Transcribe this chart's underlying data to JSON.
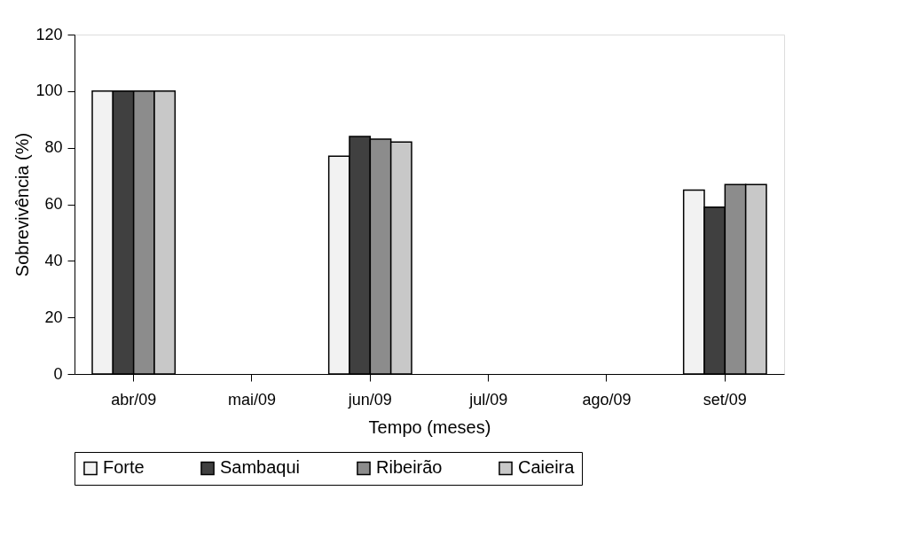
{
  "chart_data": {
    "type": "bar",
    "xlabel": "Tempo (meses)",
    "ylabel": "Sobrevivência (%)",
    "categories": [
      "abr/09",
      "mai/09",
      "jun/09",
      "jul/09",
      "ago/09",
      "set/09"
    ],
    "series": [
      {
        "name": "Forte",
        "color": "#f2f2f2",
        "values": [
          100,
          null,
          77,
          null,
          null,
          65
        ]
      },
      {
        "name": "Sambaqui",
        "color": "#404040",
        "values": [
          100,
          null,
          84,
          null,
          null,
          59
        ]
      },
      {
        "name": "Ribeirão",
        "color": "#8c8c8c",
        "values": [
          100,
          null,
          83,
          null,
          null,
          67
        ]
      },
      {
        "name": "Caieira",
        "color": "#c8c8c8",
        "values": [
          100,
          null,
          82,
          null,
          null,
          67
        ]
      }
    ],
    "ylim": [
      0,
      120
    ],
    "yticks": [
      0,
      20,
      40,
      60,
      80,
      100,
      120
    ],
    "grid": false,
    "legend": "bottom"
  }
}
